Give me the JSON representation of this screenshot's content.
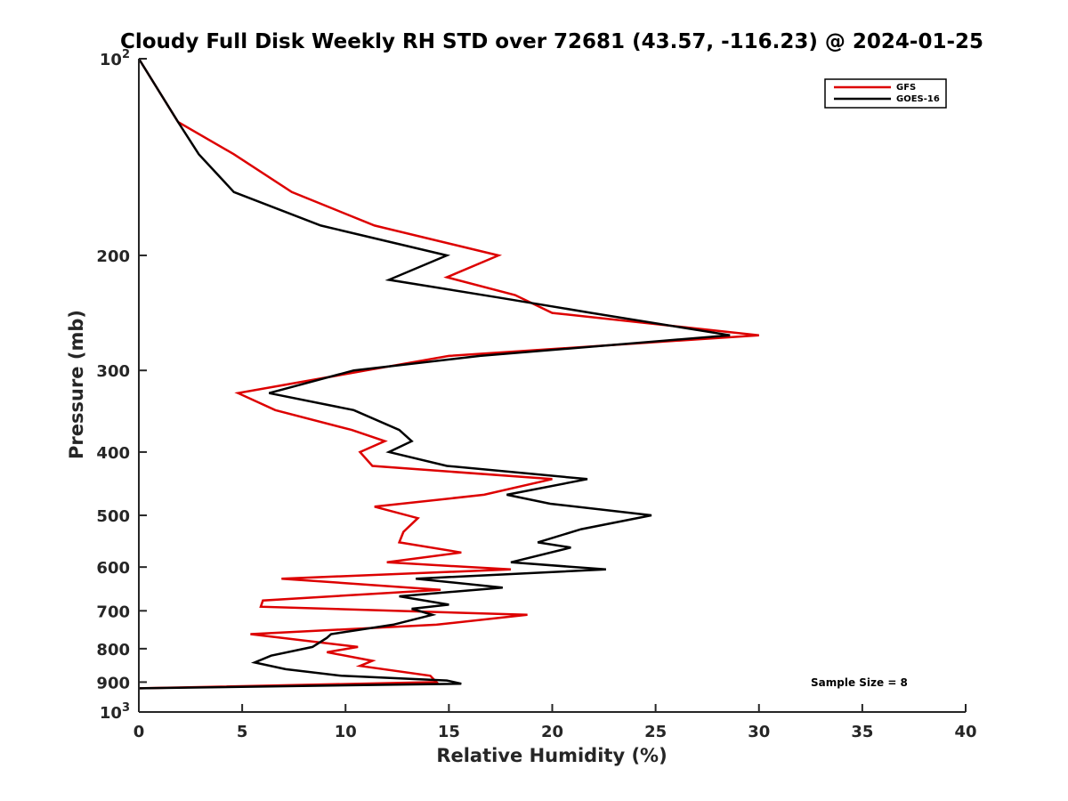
{
  "chart_data": {
    "type": "line",
    "title": "Cloudy Full Disk Weekly RH STD over 72681 (43.57, -116.23) @ 2024-01-25",
    "xlabel": "Relative Humidity (%)",
    "ylabel": "Pressure (mb)",
    "xlim": [
      0,
      40
    ],
    "ylim": [
      100,
      1000
    ],
    "yscale": "log",
    "y_reversed": true,
    "grid": false,
    "legend_position": "top-right",
    "x_ticks": [
      0,
      5,
      10,
      15,
      20,
      25,
      30,
      35,
      40
    ],
    "x_tick_labels": [
      "0",
      "5",
      "10",
      "15",
      "20",
      "25",
      "30",
      "35",
      "40"
    ],
    "y_ticks": [
      100,
      200,
      300,
      400,
      500,
      600,
      700,
      800,
      900,
      1000
    ],
    "y_tick_labels": [
      {
        "base": "10",
        "exp": "2"
      },
      {
        "base": "200",
        "exp": ""
      },
      {
        "base": "300",
        "exp": ""
      },
      {
        "base": "400",
        "exp": ""
      },
      {
        "base": "500",
        "exp": ""
      },
      {
        "base": "600",
        "exp": ""
      },
      {
        "base": "700",
        "exp": ""
      },
      {
        "base": "800",
        "exp": ""
      },
      {
        "base": "900",
        "exp": ""
      },
      {
        "base": "10",
        "exp": "3"
      }
    ],
    "annotation": "Sample Size = 8",
    "series": [
      {
        "name": "GFS",
        "color": "#dd0000",
        "points": [
          [
            0.0,
            100
          ],
          [
            1.9,
            125
          ],
          [
            4.6,
            140
          ],
          [
            7.4,
            160
          ],
          [
            11.4,
            180
          ],
          [
            17.4,
            200
          ],
          [
            14.9,
            216
          ],
          [
            18.2,
            230
          ],
          [
            20.0,
            245
          ],
          [
            30.0,
            265
          ],
          [
            15.0,
            285
          ],
          [
            11.0,
            300
          ],
          [
            4.8,
            325
          ],
          [
            6.6,
            345
          ],
          [
            10.3,
            370
          ],
          [
            11.9,
            385
          ],
          [
            10.7,
            400
          ],
          [
            11.3,
            420
          ],
          [
            20.0,
            440
          ],
          [
            16.7,
            465
          ],
          [
            11.4,
            485
          ],
          [
            13.5,
            505
          ],
          [
            12.8,
            530
          ],
          [
            12.6,
            550
          ],
          [
            15.6,
            570
          ],
          [
            12.0,
            590
          ],
          [
            18.0,
            605
          ],
          [
            6.9,
            625
          ],
          [
            14.6,
            650
          ],
          [
            6.0,
            675
          ],
          [
            5.9,
            690
          ],
          [
            18.8,
            710
          ],
          [
            14.4,
            735
          ],
          [
            5.4,
            760
          ],
          [
            10.6,
            795
          ],
          [
            9.1,
            810
          ],
          [
            11.3,
            835
          ],
          [
            10.7,
            850
          ],
          [
            14.1,
            880
          ],
          [
            14.4,
            900
          ],
          [
            0.0,
            920
          ]
        ]
      },
      {
        "name": "GOES-16",
        "color": "#000000",
        "points": [
          [
            0.0,
            100
          ],
          [
            1.9,
            125
          ],
          [
            2.9,
            140
          ],
          [
            4.6,
            160
          ],
          [
            8.8,
            180
          ],
          [
            14.9,
            200
          ],
          [
            12.1,
            218
          ],
          [
            17.4,
            232
          ],
          [
            21.9,
            245
          ],
          [
            28.6,
            265
          ],
          [
            16.5,
            285
          ],
          [
            10.4,
            300
          ],
          [
            6.3,
            325
          ],
          [
            10.4,
            345
          ],
          [
            12.6,
            370
          ],
          [
            13.2,
            385
          ],
          [
            12.1,
            400
          ],
          [
            14.9,
            420
          ],
          [
            21.7,
            440
          ],
          [
            17.8,
            465
          ],
          [
            19.9,
            480
          ],
          [
            24.8,
            500
          ],
          [
            21.4,
            525
          ],
          [
            19.3,
            550
          ],
          [
            20.9,
            560
          ],
          [
            18.0,
            590
          ],
          [
            22.6,
            605
          ],
          [
            13.4,
            625
          ],
          [
            17.6,
            645
          ],
          [
            12.6,
            665
          ],
          [
            15.0,
            685
          ],
          [
            13.2,
            695
          ],
          [
            14.2,
            710
          ],
          [
            12.3,
            735
          ],
          [
            9.3,
            760
          ],
          [
            9.1,
            770
          ],
          [
            8.4,
            795
          ],
          [
            6.4,
            820
          ],
          [
            5.6,
            840
          ],
          [
            7.1,
            860
          ],
          [
            9.8,
            880
          ],
          [
            14.9,
            895
          ],
          [
            15.6,
            905
          ],
          [
            0.0,
            920
          ]
        ]
      }
    ]
  }
}
